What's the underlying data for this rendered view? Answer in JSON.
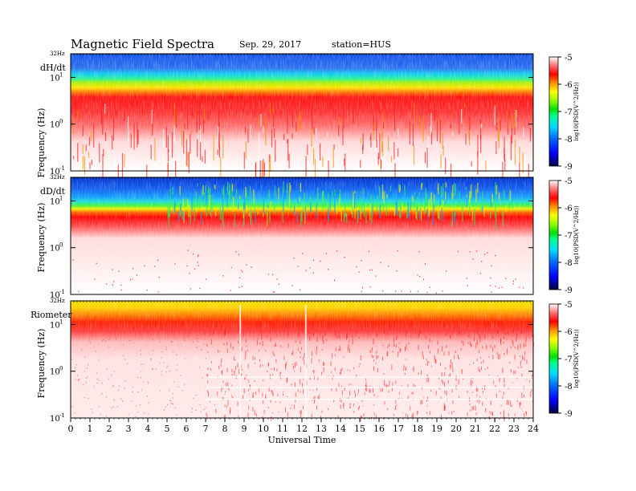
{
  "chart_data": {
    "type": "heatmap",
    "title": "Magnetic  Field  Spectra",
    "date": "Sep. 29, 2017",
    "station": "station=HUS",
    "xlabel": "Universal Time",
    "xlim": [
      0,
      24
    ],
    "xticks": [
      "0",
      "1",
      "2",
      "3",
      "4",
      "5",
      "6",
      "7",
      "8",
      "9",
      "10",
      "11",
      "12",
      "13",
      "14",
      "15",
      "16",
      "17",
      "18",
      "19",
      "20",
      "21",
      "22",
      "23",
      "24"
    ],
    "ylabel": "Frequency  (Hz)",
    "ylim_hz": [
      0.1,
      32
    ],
    "ytick_top": "32Hz",
    "yticks": [
      {
        "value": 10,
        "base": "10",
        "exp": "1"
      },
      {
        "value": 1,
        "base": "10",
        "exp": "0"
      },
      {
        "value": 0.1,
        "base": "10",
        "exp": "-1"
      }
    ],
    "colorbar": {
      "label": "log10(PSD(V^2/Hz))",
      "range": [
        -9,
        -5
      ],
      "ticks": [
        "-5",
        "-6",
        "-7",
        "-8",
        "-9"
      ],
      "colors": [
        "#000060",
        "#0000ff",
        "#0080ff",
        "#00e0ff",
        "#00ff80",
        "#00e000",
        "#80ff00",
        "#ffff00",
        "#ff8000",
        "#ff0000",
        "#ffffff"
      ]
    },
    "panels": [
      {
        "name": "dH/dt"
      },
      {
        "name": "dD/dt"
      },
      {
        "name": "Riometer"
      }
    ]
  }
}
